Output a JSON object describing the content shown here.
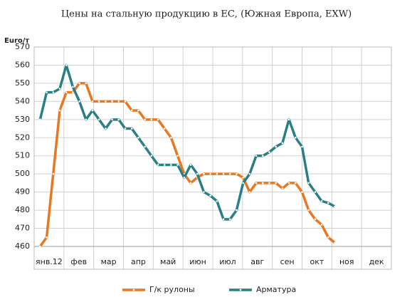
{
  "chart_data": {
    "type": "line",
    "title": "Цены на стальную продукцию в ЕС, (Южная Европа,  EXW)",
    "y_label": "Euro/т",
    "categories": [
      "янв.12",
      "фев",
      "мар",
      "апр",
      "май",
      "июн",
      "июл",
      "авг",
      "сен",
      "окт",
      "ноя",
      "дек"
    ],
    "xlim": [
      0,
      12
    ],
    "x": [
      0.2,
      0.42,
      0.64,
      0.86,
      1.08,
      1.3,
      1.52,
      1.74,
      1.96,
      2.18,
      2.4,
      2.62,
      2.84,
      3.06,
      3.28,
      3.5,
      3.72,
      3.94,
      4.16,
      4.38,
      4.6,
      4.82,
      5.04,
      5.26,
      5.48,
      5.7,
      5.92,
      6.14,
      6.36,
      6.58,
      6.8,
      7.02,
      7.24,
      7.46,
      7.68,
      7.9,
      8.12,
      8.34,
      8.56,
      8.78,
      9.0,
      9.22,
      9.44,
      9.66,
      9.88,
      10.1
    ],
    "series": [
      {
        "name": "Г/к рулоны",
        "color": "#e87722",
        "values": [
          460,
          465,
          500,
          535,
          545,
          545,
          550,
          550,
          540,
          540,
          540,
          540,
          540,
          540,
          535,
          535,
          530,
          530,
          530,
          525,
          520,
          510,
          500,
          495,
          498,
          500,
          500,
          500,
          500,
          500,
          500,
          498,
          490,
          495,
          495,
          495,
          495,
          492,
          495,
          495,
          490,
          480,
          475,
          472,
          465,
          462
        ]
      },
      {
        "name": "Арматура",
        "color": "#2a7f86",
        "values": [
          530,
          545,
          545,
          547,
          560,
          548,
          540,
          530,
          535,
          530,
          525,
          530,
          530,
          525,
          525,
          520,
          515,
          510,
          505,
          505,
          505,
          505,
          498,
          505,
          500,
          490,
          488,
          485,
          475,
          475,
          480,
          495,
          500,
          510,
          510,
          512,
          515,
          517,
          530,
          520,
          515,
          495,
          490,
          485,
          484,
          482
        ]
      }
    ],
    "ylim": [
      460,
      570
    ],
    "yticks": [
      460,
      470,
      480,
      490,
      500,
      510,
      520,
      530,
      540,
      550,
      560,
      570
    ],
    "grid": true
  }
}
